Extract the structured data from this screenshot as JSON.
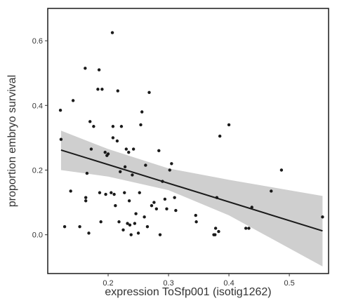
{
  "chart_data": {
    "type": "scatter",
    "title": "",
    "xlabel": "expression ToSfp001 (isotig1262)",
    "ylabel": "proportion embryo survival",
    "xlim": [
      0.1,
      0.565
    ],
    "ylim": [
      -0.12,
      0.7
    ],
    "xticks": [
      {
        "value": 0.2,
        "label": "0.2"
      },
      {
        "value": 0.3,
        "label": "0.3"
      },
      {
        "value": 0.4,
        "label": "0.4"
      },
      {
        "value": 0.5,
        "label": "0.5"
      }
    ],
    "yticks": [
      {
        "value": 0.0,
        "label": "0.0"
      },
      {
        "value": 0.2,
        "label": "0.2"
      },
      {
        "value": 0.4,
        "label": "0.4"
      },
      {
        "value": 0.6,
        "label": "0.6"
      }
    ],
    "grid": false,
    "series": [
      {
        "points": [
          {
            "x": 0.121,
            "y": 0.385
          },
          {
            "x": 0.122,
            "y": 0.295
          },
          {
            "x": 0.128,
            "y": 0.025
          },
          {
            "x": 0.138,
            "y": 0.135
          },
          {
            "x": 0.142,
            "y": 0.415
          },
          {
            "x": 0.153,
            "y": 0.025
          },
          {
            "x": 0.162,
            "y": 0.515
          },
          {
            "x": 0.163,
            "y": 0.115
          },
          {
            "x": 0.163,
            "y": 0.105
          },
          {
            "x": 0.165,
            "y": 0.19
          },
          {
            "x": 0.168,
            "y": 0.005
          },
          {
            "x": 0.17,
            "y": 0.35
          },
          {
            "x": 0.172,
            "y": 0.265
          },
          {
            "x": 0.176,
            "y": 0.335
          },
          {
            "x": 0.183,
            "y": 0.45
          },
          {
            "x": 0.185,
            "y": 0.51
          },
          {
            "x": 0.186,
            "y": 0.13
          },
          {
            "x": 0.188,
            "y": 0.04
          },
          {
            "x": 0.19,
            "y": 0.45
          },
          {
            "x": 0.195,
            "y": 0.255
          },
          {
            "x": 0.196,
            "y": 0.125
          },
          {
            "x": 0.198,
            "y": 0.245
          },
          {
            "x": 0.2,
            "y": 0.25
          },
          {
            "x": 0.205,
            "y": 0.13
          },
          {
            "x": 0.207,
            "y": 0.625
          },
          {
            "x": 0.208,
            "y": 0.335
          },
          {
            "x": 0.208,
            "y": 0.3
          },
          {
            "x": 0.21,
            "y": 0.125
          },
          {
            "x": 0.212,
            "y": 0.09
          },
          {
            "x": 0.215,
            "y": 0.29
          },
          {
            "x": 0.216,
            "y": 0.445
          },
          {
            "x": 0.218,
            "y": 0.04
          },
          {
            "x": 0.22,
            "y": 0.195
          },
          {
            "x": 0.222,
            "y": 0.335
          },
          {
            "x": 0.225,
            "y": 0.015
          },
          {
            "x": 0.227,
            "y": 0.13
          },
          {
            "x": 0.228,
            "y": 0.21
          },
          {
            "x": 0.23,
            "y": 0.265
          },
          {
            "x": 0.232,
            "y": 0.035
          },
          {
            "x": 0.234,
            "y": 0.255
          },
          {
            "x": 0.235,
            "y": 0.105
          },
          {
            "x": 0.236,
            "y": 0.03
          },
          {
            "x": 0.238,
            "y": 0.0
          },
          {
            "x": 0.24,
            "y": 0.185
          },
          {
            "x": 0.242,
            "y": 0.265
          },
          {
            "x": 0.244,
            "y": 0.035
          },
          {
            "x": 0.246,
            "y": 0.065
          },
          {
            "x": 0.25,
            "y": 0.005
          },
          {
            "x": 0.252,
            "y": 0.13
          },
          {
            "x": 0.254,
            "y": 0.34
          },
          {
            "x": 0.256,
            "y": 0.38
          },
          {
            "x": 0.26,
            "y": 0.055
          },
          {
            "x": 0.262,
            "y": 0.215
          },
          {
            "x": 0.265,
            "y": 0.025
          },
          {
            "x": 0.268,
            "y": 0.44
          },
          {
            "x": 0.272,
            "y": 0.09
          },
          {
            "x": 0.276,
            "y": 0.1
          },
          {
            "x": 0.28,
            "y": 0.08
          },
          {
            "x": 0.284,
            "y": 0.26
          },
          {
            "x": 0.286,
            "y": 0.0
          },
          {
            "x": 0.29,
            "y": 0.165
          },
          {
            "x": 0.294,
            "y": 0.11
          },
          {
            "x": 0.297,
            "y": 0.08
          },
          {
            "x": 0.302,
            "y": 0.2
          },
          {
            "x": 0.305,
            "y": 0.22
          },
          {
            "x": 0.31,
            "y": 0.115
          },
          {
            "x": 0.312,
            "y": 0.075
          },
          {
            "x": 0.345,
            "y": 0.06
          },
          {
            "x": 0.346,
            "y": 0.04
          },
          {
            "x": 0.375,
            "y": 0.0
          },
          {
            "x": 0.377,
            "y": 0.0
          },
          {
            "x": 0.378,
            "y": 0.02
          },
          {
            "x": 0.38,
            "y": 0.115
          },
          {
            "x": 0.383,
            "y": 0.01
          },
          {
            "x": 0.385,
            "y": 0.305
          },
          {
            "x": 0.4,
            "y": 0.34
          },
          {
            "x": 0.428,
            "y": 0.02
          },
          {
            "x": 0.433,
            "y": 0.02
          },
          {
            "x": 0.438,
            "y": 0.085
          },
          {
            "x": 0.47,
            "y": 0.135
          },
          {
            "x": 0.487,
            "y": 0.2
          },
          {
            "x": 0.555,
            "y": 0.055
          }
        ]
      }
    ],
    "trend": {
      "x": [
        0.122,
        0.555
      ],
      "y": [
        0.262,
        0.012
      ]
    },
    "confidence_band": {
      "x": [
        0.122,
        0.2,
        0.3,
        0.4,
        0.555
      ],
      "upper": [
        0.322,
        0.265,
        0.205,
        0.17,
        0.12
      ],
      "lower": [
        0.2,
        0.18,
        0.138,
        0.06,
        -0.098
      ]
    },
    "colors": {
      "points": "#1a1a1a",
      "line": "#1a1a1a",
      "band": "#cfcfcf",
      "frame": "#1a1a1a"
    }
  }
}
